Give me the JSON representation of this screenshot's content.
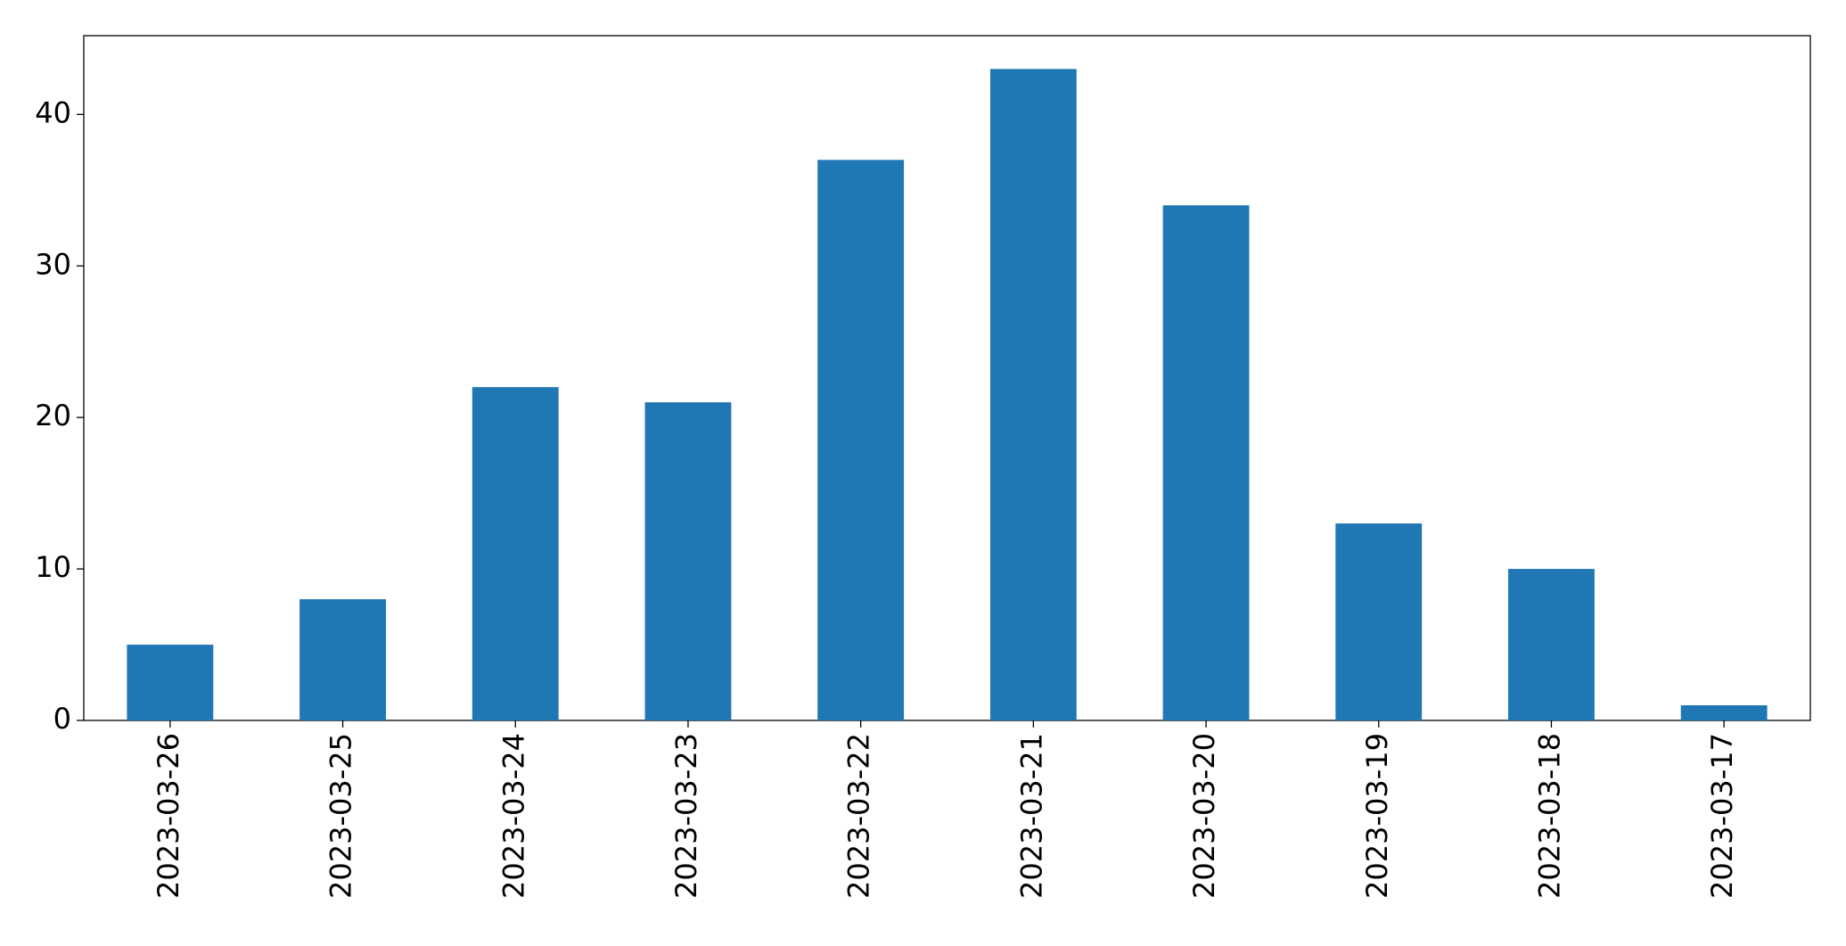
{
  "chart_data": {
    "type": "bar",
    "categories": [
      "2023-03-26",
      "2023-03-25",
      "2023-03-24",
      "2023-03-23",
      "2023-03-22",
      "2023-03-21",
      "2023-03-20",
      "2023-03-19",
      "2023-03-18",
      "2023-03-17"
    ],
    "values": [
      5,
      8,
      22,
      21,
      37,
      43,
      34,
      13,
      10,
      1
    ],
    "color": "#1f77b4",
    "ylim": [
      0,
      45.2
    ],
    "yticks": [
      0,
      10,
      20,
      30,
      40
    ],
    "grid": false
  }
}
